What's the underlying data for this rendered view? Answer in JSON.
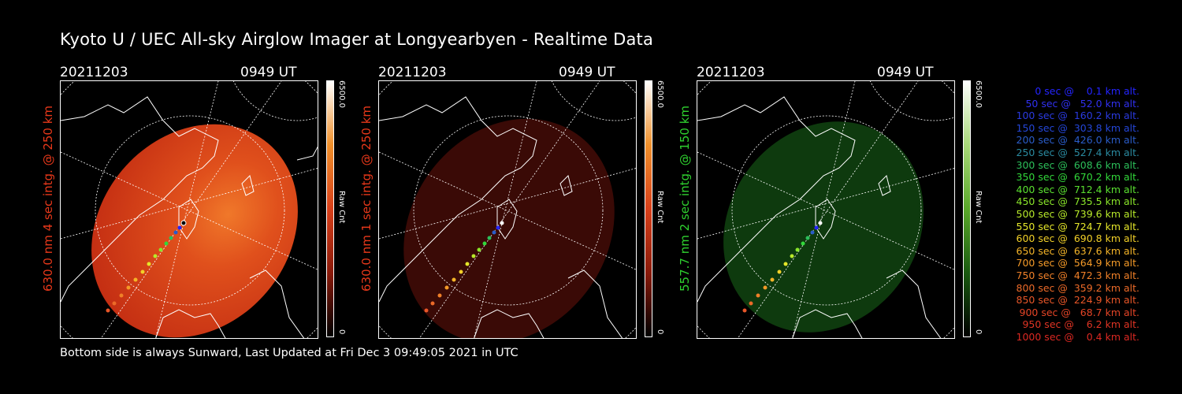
{
  "title": "Kyoto U / UEC All-sky Airglow Imager at Longyearbyen - Realtime Data",
  "footer": "Bottom side is always Sunward, Last Updated at Fri Dec  3 09:49:05 2021 in UTC",
  "panels": [
    {
      "date": "20211203",
      "time": "0949 UT",
      "label": "630.0 nm 4 sec intg. @ 250 km",
      "label_color": "#e8381a",
      "cbar_max": "6500.0",
      "cbar_unit": "Raw Cnt",
      "cbar_min": "0",
      "image_brightness": "bright red"
    },
    {
      "date": "20211203",
      "time": "0949 UT",
      "label": "630.0 nm 1 sec intg. @ 250 km",
      "label_color": "#e8381a",
      "cbar_max": "6500.0",
      "cbar_unit": "Raw Cnt",
      "cbar_min": "0",
      "image_brightness": "dark red"
    },
    {
      "date": "20211203",
      "time": "0949 UT",
      "label": "557.7 nm 2 sec intg. @ 150 km",
      "label_color": "#2fd12f",
      "cbar_max": "6500.0",
      "cbar_unit": "Raw Cnt",
      "cbar_min": "0",
      "image_brightness": "dark green"
    }
  ],
  "legend": [
    {
      "text": "   0 sec @    0.1 km alt.",
      "color": "#2424ff"
    },
    {
      "text": "  50 sec @   52.0 km alt.",
      "color": "#3030f0"
    },
    {
      "text": " 100 sec @  160.2 km alt.",
      "color": "#2a3ae0"
    },
    {
      "text": " 150 sec @  303.8 km alt.",
      "color": "#2446d8"
    },
    {
      "text": " 200 sec @  426.0 km alt.",
      "color": "#2a5cc8"
    },
    {
      "text": " 250 sec @  527.4 km alt.",
      "color": "#2a8aa0"
    },
    {
      "text": " 300 sec @  608.6 km alt.",
      "color": "#2cbf5a"
    },
    {
      "text": " 350 sec @  670.2 km alt.",
      "color": "#32d83a"
    },
    {
      "text": " 400 sec @  712.4 km alt.",
      "color": "#5ae030"
    },
    {
      "text": " 450 sec @  735.5 km alt.",
      "color": "#8ae62a"
    },
    {
      "text": " 500 sec @  739.6 km alt.",
      "color": "#b8ea2a"
    },
    {
      "text": " 550 sec @  724.7 km alt.",
      "color": "#e4e62a"
    },
    {
      "text": " 600 sec @  690.8 km alt.",
      "color": "#f2d028"
    },
    {
      "text": " 650 sec @  637.6 km alt.",
      "color": "#f4b428"
    },
    {
      "text": " 700 sec @  564.9 km alt.",
      "color": "#f49a28"
    },
    {
      "text": " 750 sec @  472.3 km alt.",
      "color": "#f08028"
    },
    {
      "text": " 800 sec @  359.2 km alt.",
      "color": "#ec6a28"
    },
    {
      "text": " 850 sec @  224.9 km alt.",
      "color": "#e85628"
    },
    {
      "text": " 900 sec @   68.7 km alt.",
      "color": "#e44426"
    },
    {
      "text": " 950 sec @    6.2 km alt.",
      "color": "#e03424"
    },
    {
      "text": "1000 sec @    0.4 km alt.",
      "color": "#dc2822"
    }
  ]
}
